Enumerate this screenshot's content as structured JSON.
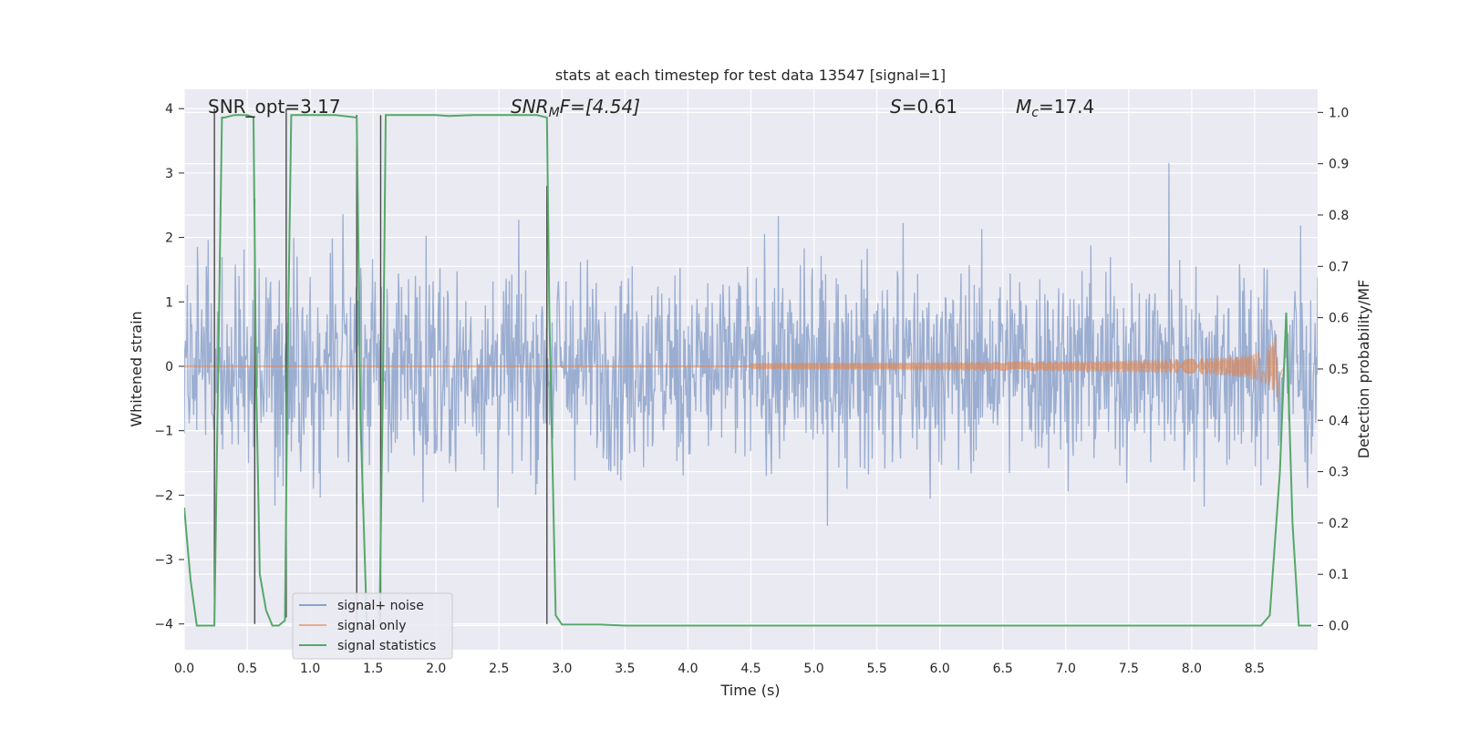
{
  "chart_data": {
    "type": "line",
    "title": "stats at each timestep for test data 13547 [signal=1]",
    "xlabel": "Time (s)",
    "ylabel_left": "Whitened strain",
    "ylabel_right": "Detection probability/MF",
    "xlim": [
      0.0,
      9.0
    ],
    "ylim_left": [
      -4.4,
      4.3
    ],
    "ylim_right": [
      -0.047,
      1.045
    ],
    "x_ticks": [
      "0.0",
      "0.5",
      "1.0",
      "1.5",
      "2.0",
      "2.5",
      "3.0",
      "3.5",
      "4.0",
      "4.5",
      "5.0",
      "5.5",
      "6.0",
      "6.5",
      "7.0",
      "7.5",
      "8.0",
      "8.5"
    ],
    "y_ticks_left": [
      "4",
      "3",
      "2",
      "1",
      "0",
      "−1",
      "−2",
      "−3",
      "−4"
    ],
    "y_ticks_right": [
      "1.0",
      "0.9",
      "0.8",
      "0.7",
      "0.6",
      "0.5",
      "0.4",
      "0.3",
      "0.2",
      "0.1",
      "0.0"
    ],
    "grid": true,
    "legend_position": "lower-left",
    "legend": [
      "signal+ noise",
      "signal only",
      "signal statistics"
    ],
    "annotations": {
      "snr_opt": "SNR_opt=3.17",
      "snr_mf_prefix": "SNR",
      "snr_mf_sub": "M",
      "snr_mf_suffix": "F=[4.54]",
      "s_prefix": "S",
      "s_suffix": "=0.61",
      "mc_prefix": "M",
      "mc_sub": "c",
      "mc_suffix": "=17.4"
    },
    "series": [
      {
        "name": "signal+ noise",
        "axis": "left",
        "color": "#4c72b0",
        "description": "whitened strain, noise-dominated, amplitude approx ±2.5 with spikes to ±3.9"
      },
      {
        "name": "signal only",
        "axis": "left",
        "color": "#dd8452",
        "chirp_start": 4.5,
        "chirp_peak_time": 8.68,
        "chirp_peak_amplitude": 0.6
      },
      {
        "name": "signal statistics",
        "axis": "right",
        "color": "#55a868",
        "x": [
          0.0,
          0.05,
          0.1,
          0.2,
          0.24,
          0.27,
          0.3,
          0.32,
          0.4,
          0.5,
          0.55,
          0.57,
          0.6,
          0.65,
          0.7,
          0.75,
          0.8,
          0.82,
          0.85,
          0.88,
          0.9,
          1.0,
          1.2,
          1.37,
          1.38,
          1.4,
          1.45,
          1.5,
          1.55,
          1.58,
          1.6,
          1.62,
          1.7,
          2.0,
          2.1,
          2.3,
          2.5,
          2.8,
          2.88,
          2.9,
          2.95,
          3.0,
          3.3,
          3.5,
          4.0,
          5.0,
          6.0,
          7.0,
          8.0,
          8.55,
          8.62,
          8.7,
          8.75,
          8.8,
          8.85,
          8.95
        ],
        "values": [
          0.23,
          0.09,
          0.0,
          0.0,
          0.0,
          0.5,
          0.99,
          0.99,
          0.995,
          0.995,
          0.99,
          0.5,
          0.1,
          0.03,
          0.0,
          0.0,
          0.01,
          0.5,
          0.995,
          0.995,
          0.995,
          0.995,
          0.995,
          0.99,
          0.8,
          0.4,
          0.0,
          0.0,
          0.0,
          0.5,
          0.995,
          0.995,
          0.995,
          0.995,
          0.993,
          0.995,
          0.995,
          0.995,
          0.99,
          0.6,
          0.02,
          0.002,
          0.002,
          0.0,
          0.0,
          0.0,
          0.0,
          0.0,
          0.0,
          0.0,
          0.02,
          0.3,
          0.61,
          0.2,
          0.0,
          0.0
        ]
      }
    ],
    "vertical_markers": [
      {
        "x": 0.24,
        "y1": -4.0,
        "y2": 4.0
      },
      {
        "x": 0.56,
        "y1": -4.0,
        "y2": 2.6
      },
      {
        "x": 0.81,
        "y1": -3.9,
        "y2": 4.0
      },
      {
        "x": 1.37,
        "y1": -4.0,
        "y2": 3.9
      },
      {
        "x": 1.56,
        "y1": -4.0,
        "y2": 3.9
      },
      {
        "x": 2.88,
        "y1": -4.0,
        "y2": 2.8
      }
    ]
  }
}
